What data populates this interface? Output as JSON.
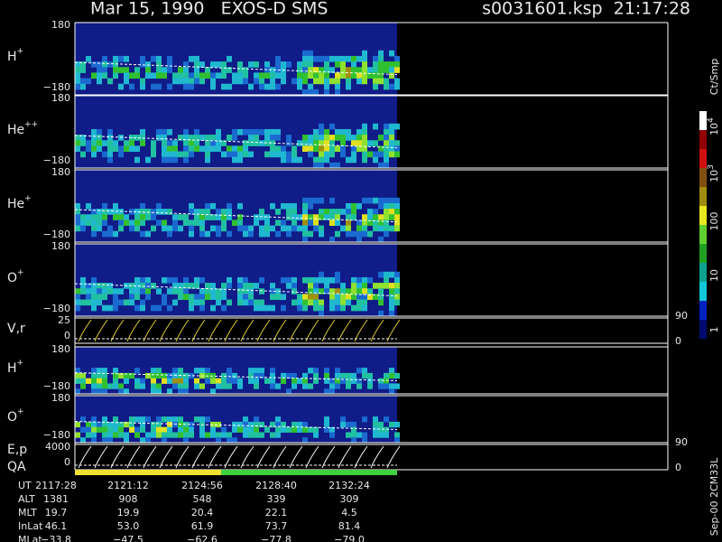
{
  "header": {
    "title": "Mar 15, 1990   EXOS-D SMS",
    "file": "s0031601.ksp  21:17:28"
  },
  "panels": [
    {
      "label": "H",
      "sup": "+",
      "top": "180",
      "bottom": "−180"
    },
    {
      "label": "He",
      "sup": "++",
      "top": "180",
      "bottom": "−180"
    },
    {
      "label": "He",
      "sup": "+",
      "top": "180",
      "bottom": "−180"
    },
    {
      "label": "O",
      "sup": "+",
      "top": "180",
      "bottom": "−180"
    },
    {
      "label": "V,r",
      "top": "25",
      "bottom": "0",
      "right_top": "90",
      "right_bottom": "0"
    },
    {
      "label": "H",
      "sup": "+",
      "top": "180",
      "bottom": "−180"
    },
    {
      "label": "O",
      "sup": "+",
      "top": "180",
      "bottom": "−180"
    },
    {
      "label": "E,p",
      "label2": "QA",
      "top": "4000",
      "bottom": "0",
      "right_top": "90",
      "right_bottom": "0"
    }
  ],
  "colorbar": {
    "unit": "Ct/Smp",
    "ticks": [
      {
        "base": "10",
        "exp": "4"
      },
      {
        "base": "10",
        "exp": "3"
      },
      {
        "base": "100"
      },
      {
        "base": "10"
      },
      {
        "base": "1"
      }
    ]
  },
  "footer_note": "Sep-00 2CM33L",
  "table": {
    "rows": [
      [
        "UT",
        "2117:28",
        "2121:12",
        "2124:56",
        "2128:40",
        "2132:24"
      ],
      [
        "ALT",
        "1381",
        "908",
        "548",
        "339",
        "309"
      ],
      [
        "MLT",
        "19.7",
        "19.9",
        "20.4",
        "22.1",
        "4.5"
      ],
      [
        "InLat",
        "46.1",
        "53.0",
        "61.9",
        "73.7",
        "81.4"
      ],
      [
        "MLat",
        "−33.8",
        "−47.5",
        "−62.6",
        "−77.8",
        "−79.0"
      ]
    ]
  }
}
